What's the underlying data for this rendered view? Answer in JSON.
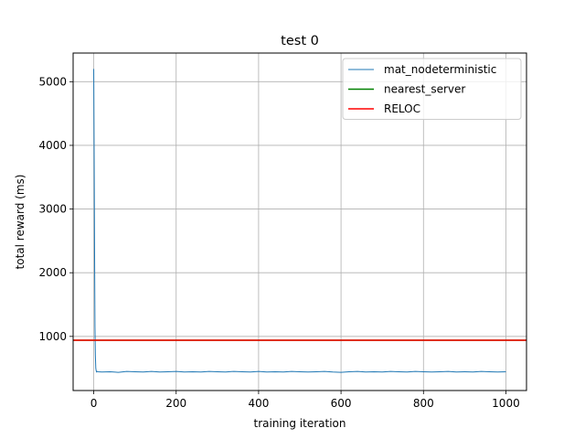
{
  "chart_data": {
    "type": "line",
    "title": "test 0",
    "xlabel": "training iteration",
    "ylabel": "total reward (ms)",
    "xlim": [
      -50,
      1050
    ],
    "ylim": [
      150,
      5450
    ],
    "x_ticks": [
      0,
      200,
      400,
      600,
      800,
      1000
    ],
    "y_ticks": [
      1000,
      2000,
      3000,
      4000,
      5000
    ],
    "x_tick_labels": [
      "0",
      "200",
      "400",
      "600",
      "800",
      "1000"
    ],
    "y_tick_labels": [
      "1000",
      "2000",
      "3000",
      "4000",
      "5000"
    ],
    "grid": true,
    "legend_position": "top-right",
    "series": [
      {
        "name": "mat_nodeterministic",
        "color": "#1f77b4",
        "kind": "line",
        "x": [
          0,
          1,
          2,
          3,
          4,
          5,
          6,
          7,
          8,
          10,
          20,
          40,
          60,
          80,
          100,
          120,
          140,
          160,
          180,
          200,
          220,
          240,
          260,
          280,
          300,
          320,
          340,
          360,
          380,
          400,
          420,
          440,
          460,
          480,
          500,
          520,
          540,
          560,
          580,
          600,
          620,
          640,
          660,
          680,
          700,
          720,
          740,
          760,
          780,
          800,
          820,
          840,
          860,
          880,
          900,
          920,
          940,
          960,
          980,
          1000
        ],
        "y": [
          5200,
          3900,
          2400,
          1150,
          700,
          500,
          460,
          440,
          450,
          445,
          440,
          445,
          435,
          450,
          445,
          440,
          450,
          440,
          445,
          450,
          440,
          445,
          440,
          450,
          445,
          440,
          450,
          445,
          440,
          450,
          440,
          445,
          440,
          450,
          445,
          440,
          445,
          450,
          440,
          435,
          445,
          450,
          440,
          445,
          440,
          450,
          445,
          440,
          450,
          445,
          440,
          445,
          450,
          440,
          445,
          440,
          450,
          445,
          440,
          445
        ]
      },
      {
        "name": "nearest_server",
        "color": "#008000",
        "kind": "hline",
        "value": 940
      },
      {
        "name": "RELOC",
        "color": "#ff0000",
        "kind": "hline",
        "value": 940
      }
    ]
  }
}
